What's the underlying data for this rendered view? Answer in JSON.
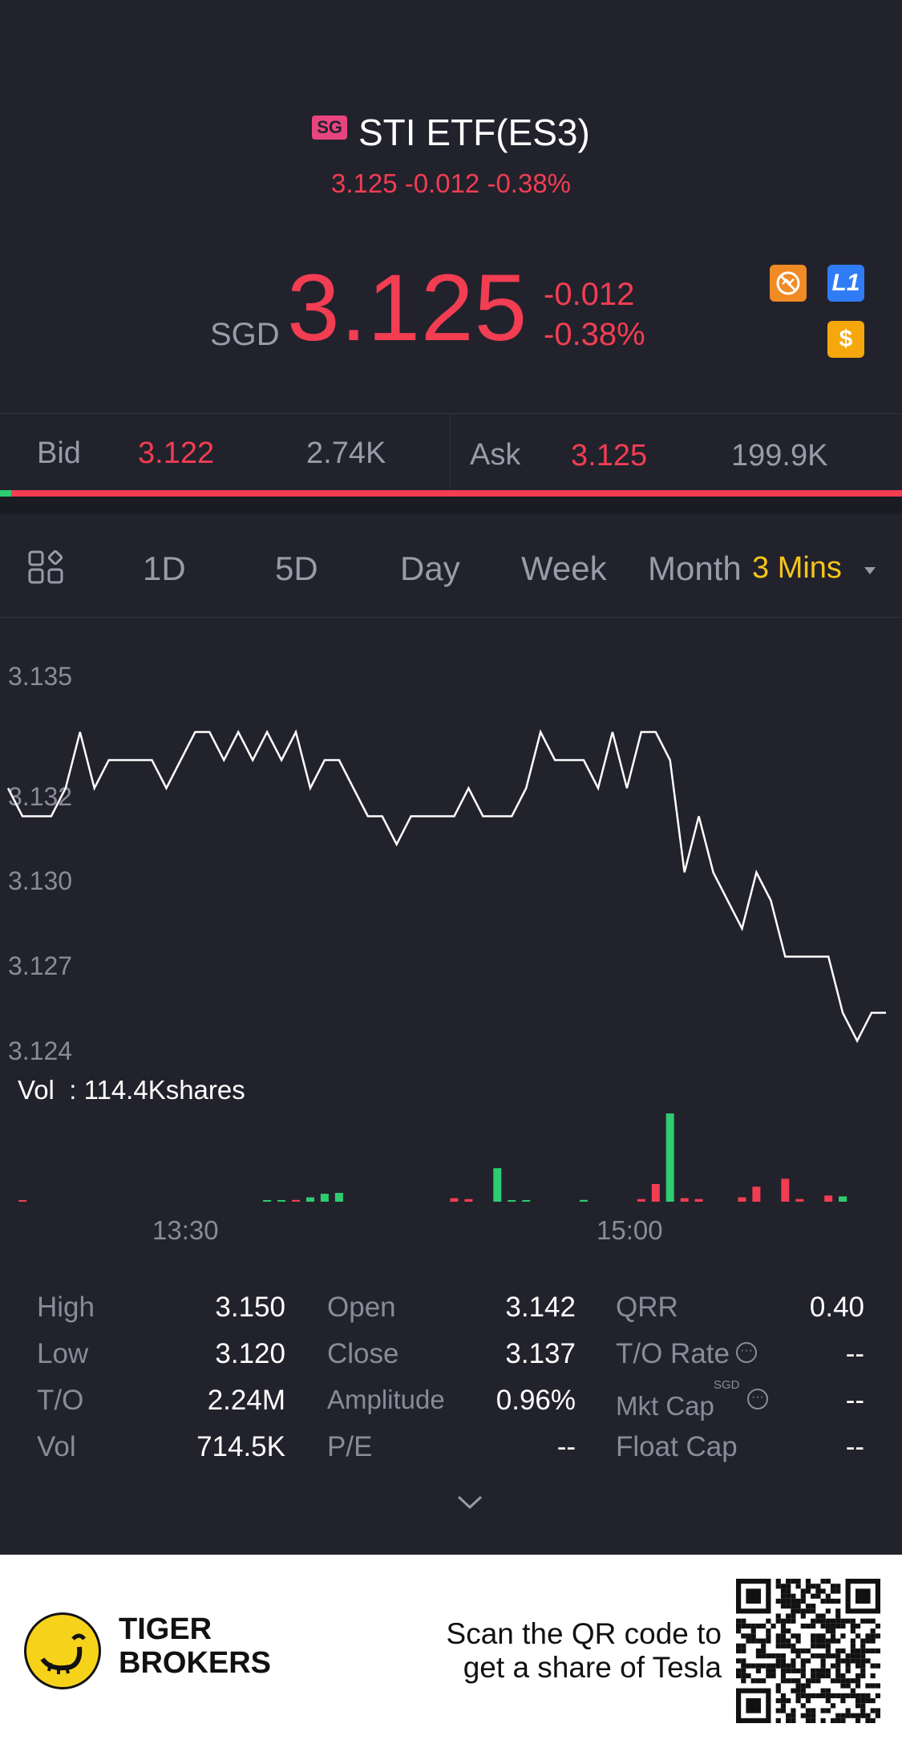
{
  "header": {
    "market_badge": "SG",
    "title": "STI ETF(ES3)",
    "subtitle_price": "3.125 -0.012 -0.38%",
    "currency": "SGD",
    "price": "3.125",
    "change": "-0.012",
    "change_pct": "-0.38%",
    "icons": {
      "no_short_icon": "no-short-icon",
      "level1_label": "L1",
      "dollar_label": "$"
    },
    "colors": {
      "down": "#f23d52",
      "up": "#2ecc71",
      "accent": "#f5c518"
    }
  },
  "quote": {
    "bid_label": "Bid",
    "bid_price": "3.122",
    "bid_size": "2.74K",
    "ask_label": "Ask",
    "ask_price": "3.125",
    "ask_size": "199.9K",
    "bid_ratio": 0.012
  },
  "tabs": {
    "items": [
      "1D",
      "5D",
      "Day",
      "Week",
      "Month"
    ],
    "interval": "3 Mins"
  },
  "chart_data": {
    "type": "line",
    "y_ticks": [
      "3.135",
      "3.132",
      "3.130",
      "3.127",
      "3.124"
    ],
    "x_ticks": [
      "13:30",
      "15:00"
    ],
    "ylim": [
      3.124,
      3.135
    ],
    "values": [
      3.132,
      3.131,
      3.131,
      3.131,
      3.132,
      3.134,
      3.132,
      3.133,
      3.133,
      3.133,
      3.133,
      3.132,
      3.133,
      3.134,
      3.134,
      3.133,
      3.134,
      3.133,
      3.134,
      3.133,
      3.134,
      3.132,
      3.133,
      3.133,
      3.132,
      3.131,
      3.131,
      3.13,
      3.131,
      3.131,
      3.131,
      3.131,
      3.132,
      3.131,
      3.131,
      3.131,
      3.132,
      3.134,
      3.133,
      3.133,
      3.133,
      3.132,
      3.134,
      3.132,
      3.134,
      3.134,
      3.133,
      3.129,
      3.131,
      3.129,
      3.128,
      3.127,
      3.129,
      3.128,
      3.126,
      3.126,
      3.126,
      3.126,
      3.124,
      3.123,
      3.124,
      3.124
    ],
    "volume_label": "Vol",
    "volume_value": "114.4Kshares",
    "volume_bars": [
      {
        "i": 1,
        "v": 0.01,
        "dir": "down"
      },
      {
        "i": 18,
        "v": 0.01,
        "dir": "up"
      },
      {
        "i": 19,
        "v": 0.01,
        "dir": "up"
      },
      {
        "i": 20,
        "v": 0.02,
        "dir": "down"
      },
      {
        "i": 21,
        "v": 0.05,
        "dir": "up"
      },
      {
        "i": 22,
        "v": 0.09,
        "dir": "up"
      },
      {
        "i": 23,
        "v": 0.1,
        "dir": "up"
      },
      {
        "i": 31,
        "v": 0.04,
        "dir": "down"
      },
      {
        "i": 32,
        "v": 0.03,
        "dir": "down"
      },
      {
        "i": 34,
        "v": 0.38,
        "dir": "up"
      },
      {
        "i": 35,
        "v": 0.01,
        "dir": "up"
      },
      {
        "i": 36,
        "v": 0.01,
        "dir": "up"
      },
      {
        "i": 40,
        "v": 0.02,
        "dir": "up"
      },
      {
        "i": 44,
        "v": 0.03,
        "dir": "down"
      },
      {
        "i": 45,
        "v": 0.2,
        "dir": "down"
      },
      {
        "i": 46,
        "v": 1.0,
        "dir": "up"
      },
      {
        "i": 47,
        "v": 0.04,
        "dir": "down"
      },
      {
        "i": 48,
        "v": 0.03,
        "dir": "down"
      },
      {
        "i": 51,
        "v": 0.05,
        "dir": "down"
      },
      {
        "i": 52,
        "v": 0.17,
        "dir": "down"
      },
      {
        "i": 54,
        "v": 0.26,
        "dir": "down"
      },
      {
        "i": 55,
        "v": 0.03,
        "dir": "down"
      },
      {
        "i": 57,
        "v": 0.07,
        "dir": "down"
      },
      {
        "i": 58,
        "v": 0.06,
        "dir": "up"
      }
    ]
  },
  "stats": {
    "col1": [
      [
        "High",
        "3.150"
      ],
      [
        "Low",
        "3.120"
      ],
      [
        "T/O",
        "2.24M"
      ],
      [
        "Vol",
        "714.5K"
      ]
    ],
    "col2": [
      [
        "Open",
        "3.142"
      ],
      [
        "Close",
        "3.137"
      ],
      [
        "Amplitude",
        "0.96%"
      ],
      [
        "P/E",
        "--"
      ]
    ],
    "col3": [
      [
        "QRR",
        "0.40"
      ],
      [
        "T/O Rate",
        "--"
      ],
      [
        "Mkt Cap",
        "--"
      ],
      [
        "Float Cap",
        "--"
      ]
    ],
    "mkt_cap_currency": "SGD"
  },
  "footer": {
    "brand_line1": "TIGER",
    "brand_line2": "BROKERS",
    "promo_line1": "Scan the QR code to",
    "promo_line2": "get a share of Tesla"
  }
}
